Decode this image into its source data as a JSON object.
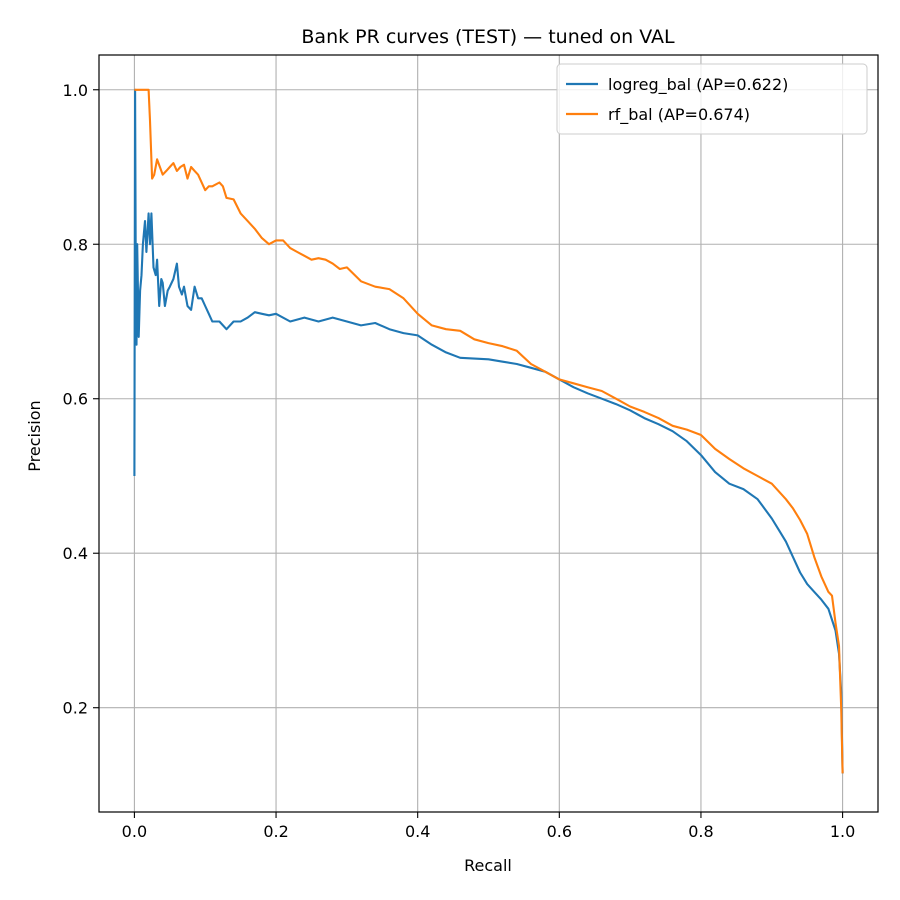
{
  "chart_data": {
    "type": "line",
    "title": "Bank PR curves (TEST) — tuned on VAL",
    "xlabel": "Recall",
    "ylabel": "Precision",
    "xlim": [
      -0.05,
      1.05
    ],
    "ylim": [
      0.065,
      1.045
    ],
    "xticks": [
      0.0,
      0.2,
      0.4,
      0.6,
      0.8,
      1.0
    ],
    "yticks": [
      0.2,
      0.4,
      0.6,
      0.8,
      1.0
    ],
    "xtick_labels": [
      "0.0",
      "0.2",
      "0.4",
      "0.6",
      "0.8",
      "1.0"
    ],
    "ytick_labels": [
      "0.2",
      "0.4",
      "0.6",
      "0.8",
      "1.0"
    ],
    "grid": true,
    "legend_position": "top-right",
    "series": [
      {
        "name": "logreg_bal (AP=0.622)",
        "color": "#1f77b4",
        "points": [
          [
            0.0,
            0.5
          ],
          [
            0.001,
            1.0
          ],
          [
            0.002,
            0.75
          ],
          [
            0.003,
            0.67
          ],
          [
            0.004,
            0.8
          ],
          [
            0.006,
            0.68
          ],
          [
            0.008,
            0.74
          ],
          [
            0.01,
            0.76
          ],
          [
            0.012,
            0.8
          ],
          [
            0.015,
            0.83
          ],
          [
            0.017,
            0.79
          ],
          [
            0.02,
            0.84
          ],
          [
            0.022,
            0.8
          ],
          [
            0.024,
            0.84
          ],
          [
            0.027,
            0.77
          ],
          [
            0.03,
            0.76
          ],
          [
            0.032,
            0.78
          ],
          [
            0.035,
            0.72
          ],
          [
            0.038,
            0.755
          ],
          [
            0.04,
            0.75
          ],
          [
            0.043,
            0.72
          ],
          [
            0.047,
            0.74
          ],
          [
            0.05,
            0.745
          ],
          [
            0.055,
            0.755
          ],
          [
            0.06,
            0.775
          ],
          [
            0.063,
            0.745
          ],
          [
            0.067,
            0.735
          ],
          [
            0.07,
            0.745
          ],
          [
            0.075,
            0.72
          ],
          [
            0.08,
            0.715
          ],
          [
            0.085,
            0.745
          ],
          [
            0.09,
            0.73
          ],
          [
            0.095,
            0.73
          ],
          [
            0.1,
            0.72
          ],
          [
            0.105,
            0.71
          ],
          [
            0.11,
            0.7
          ],
          [
            0.12,
            0.7
          ],
          [
            0.13,
            0.69
          ],
          [
            0.14,
            0.7
          ],
          [
            0.15,
            0.7
          ],
          [
            0.16,
            0.705
          ],
          [
            0.17,
            0.712
          ],
          [
            0.18,
            0.71
          ],
          [
            0.19,
            0.708
          ],
          [
            0.2,
            0.71
          ],
          [
            0.22,
            0.7
          ],
          [
            0.24,
            0.705
          ],
          [
            0.26,
            0.7
          ],
          [
            0.28,
            0.705
          ],
          [
            0.3,
            0.7
          ],
          [
            0.32,
            0.695
          ],
          [
            0.34,
            0.698
          ],
          [
            0.36,
            0.69
          ],
          [
            0.38,
            0.685
          ],
          [
            0.4,
            0.682
          ],
          [
            0.42,
            0.67
          ],
          [
            0.44,
            0.66
          ],
          [
            0.46,
            0.653
          ],
          [
            0.48,
            0.652
          ],
          [
            0.5,
            0.651
          ],
          [
            0.52,
            0.648
          ],
          [
            0.54,
            0.645
          ],
          [
            0.56,
            0.64
          ],
          [
            0.58,
            0.635
          ],
          [
            0.6,
            0.625
          ],
          [
            0.62,
            0.615
          ],
          [
            0.64,
            0.607
          ],
          [
            0.66,
            0.6
          ],
          [
            0.68,
            0.593
          ],
          [
            0.7,
            0.585
          ],
          [
            0.72,
            0.575
          ],
          [
            0.74,
            0.567
          ],
          [
            0.76,
            0.558
          ],
          [
            0.78,
            0.545
          ],
          [
            0.8,
            0.527
          ],
          [
            0.82,
            0.505
          ],
          [
            0.84,
            0.49
          ],
          [
            0.86,
            0.483
          ],
          [
            0.88,
            0.47
          ],
          [
            0.9,
            0.445
          ],
          [
            0.91,
            0.43
          ],
          [
            0.92,
            0.415
          ],
          [
            0.93,
            0.395
          ],
          [
            0.94,
            0.375
          ],
          [
            0.95,
            0.36
          ],
          [
            0.96,
            0.35
          ],
          [
            0.97,
            0.34
          ],
          [
            0.98,
            0.328
          ],
          [
            0.99,
            0.3
          ],
          [
            0.995,
            0.27
          ],
          [
            0.998,
            0.22
          ],
          [
            1.0,
            0.115
          ]
        ]
      },
      {
        "name": "rf_bal (AP=0.674)",
        "color": "#ff7f0e",
        "points": [
          [
            0.0,
            1.0
          ],
          [
            0.02,
            1.0
          ],
          [
            0.022,
            0.96
          ],
          [
            0.025,
            0.885
          ],
          [
            0.028,
            0.89
          ],
          [
            0.032,
            0.91
          ],
          [
            0.036,
            0.9
          ],
          [
            0.04,
            0.89
          ],
          [
            0.045,
            0.895
          ],
          [
            0.05,
            0.9
          ],
          [
            0.055,
            0.905
          ],
          [
            0.06,
            0.895
          ],
          [
            0.065,
            0.9
          ],
          [
            0.07,
            0.903
          ],
          [
            0.075,
            0.885
          ],
          [
            0.08,
            0.9
          ],
          [
            0.085,
            0.895
          ],
          [
            0.09,
            0.89
          ],
          [
            0.1,
            0.87
          ],
          [
            0.105,
            0.875
          ],
          [
            0.11,
            0.875
          ],
          [
            0.12,
            0.88
          ],
          [
            0.125,
            0.875
          ],
          [
            0.13,
            0.86
          ],
          [
            0.14,
            0.858
          ],
          [
            0.15,
            0.84
          ],
          [
            0.16,
            0.83
          ],
          [
            0.17,
            0.82
          ],
          [
            0.18,
            0.808
          ],
          [
            0.19,
            0.8
          ],
          [
            0.2,
            0.805
          ],
          [
            0.21,
            0.805
          ],
          [
            0.22,
            0.795
          ],
          [
            0.23,
            0.79
          ],
          [
            0.24,
            0.785
          ],
          [
            0.25,
            0.78
          ],
          [
            0.26,
            0.782
          ],
          [
            0.27,
            0.78
          ],
          [
            0.28,
            0.775
          ],
          [
            0.29,
            0.768
          ],
          [
            0.3,
            0.77
          ],
          [
            0.32,
            0.752
          ],
          [
            0.34,
            0.745
          ],
          [
            0.36,
            0.742
          ],
          [
            0.38,
            0.73
          ],
          [
            0.4,
            0.71
          ],
          [
            0.42,
            0.695
          ],
          [
            0.44,
            0.69
          ],
          [
            0.46,
            0.688
          ],
          [
            0.48,
            0.677
          ],
          [
            0.5,
            0.672
          ],
          [
            0.52,
            0.668
          ],
          [
            0.54,
            0.662
          ],
          [
            0.56,
            0.645
          ],
          [
            0.58,
            0.635
          ],
          [
            0.6,
            0.625
          ],
          [
            0.62,
            0.62
          ],
          [
            0.64,
            0.615
          ],
          [
            0.66,
            0.61
          ],
          [
            0.68,
            0.6
          ],
          [
            0.7,
            0.59
          ],
          [
            0.72,
            0.583
          ],
          [
            0.74,
            0.575
          ],
          [
            0.76,
            0.565
          ],
          [
            0.78,
            0.56
          ],
          [
            0.8,
            0.553
          ],
          [
            0.82,
            0.535
          ],
          [
            0.84,
            0.522
          ],
          [
            0.86,
            0.51
          ],
          [
            0.88,
            0.5
          ],
          [
            0.9,
            0.49
          ],
          [
            0.92,
            0.47
          ],
          [
            0.93,
            0.458
          ],
          [
            0.94,
            0.443
          ],
          [
            0.95,
            0.425
          ],
          [
            0.96,
            0.395
          ],
          [
            0.97,
            0.37
          ],
          [
            0.98,
            0.35
          ],
          [
            0.985,
            0.345
          ],
          [
            0.99,
            0.31
          ],
          [
            0.995,
            0.28
          ],
          [
            0.998,
            0.2
          ],
          [
            1.0,
            0.115
          ]
        ]
      }
    ]
  }
}
